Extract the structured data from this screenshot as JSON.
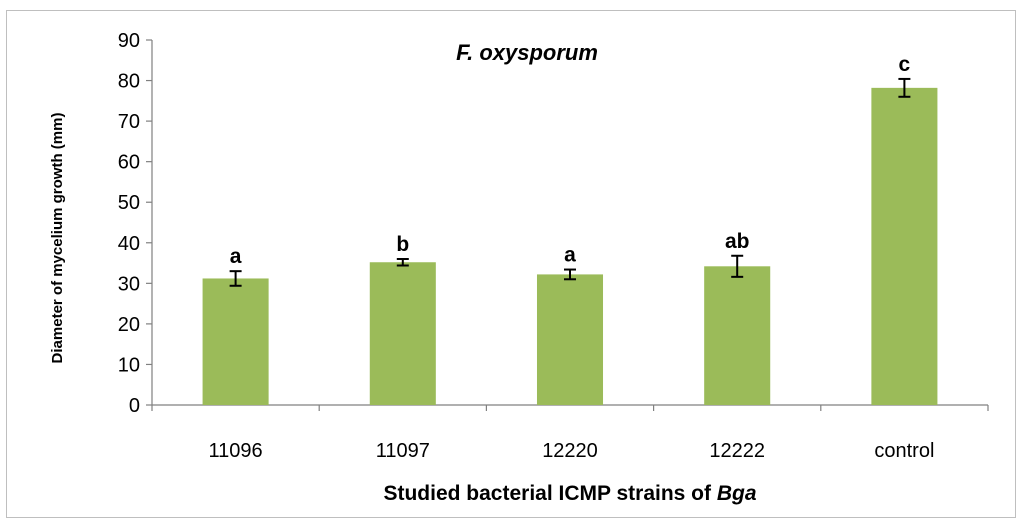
{
  "chart_data": {
    "type": "bar",
    "title": "F. oxysporum",
    "xlabel": "Studied bacterial ICMP strains of ",
    "xlabel_italic": "Bga",
    "ylabel": "Diameter of mycelium growth (mm)",
    "ylim": [
      0,
      90
    ],
    "yticks": [
      0,
      10,
      20,
      30,
      40,
      50,
      60,
      70,
      80,
      90
    ],
    "categories": [
      "11096",
      "11097",
      "12220",
      "12222",
      "control"
    ],
    "values": [
      31.2,
      35.2,
      32.2,
      34.2,
      78.2
    ],
    "error": [
      1.8,
      0.8,
      1.2,
      2.6,
      2.2
    ],
    "significance": [
      "a",
      "b",
      "a",
      "ab",
      "c"
    ],
    "bar_color": "#9bbb59",
    "grid": false,
    "legend": "none"
  }
}
